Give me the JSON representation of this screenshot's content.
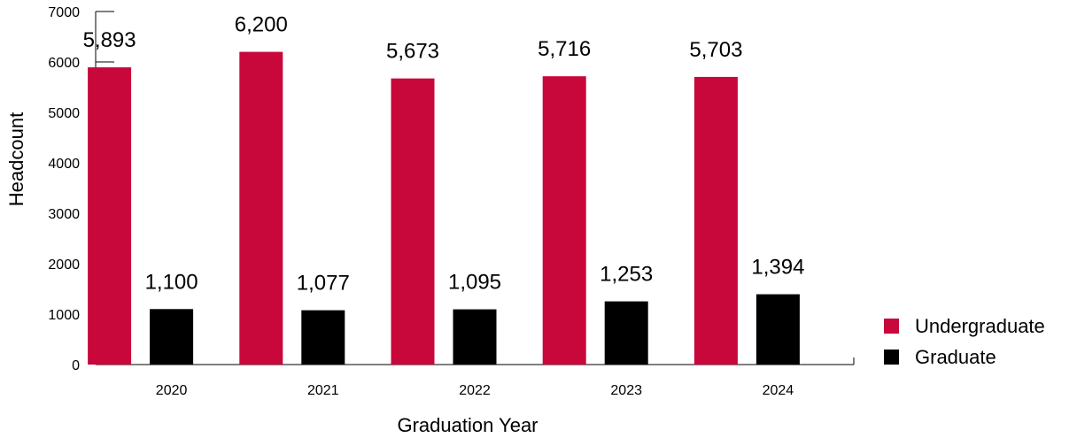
{
  "chart_data": {
    "type": "bar",
    "title": "",
    "xlabel": "Graduation Year",
    "ylabel": "Headcount",
    "ylim": [
      0,
      7000
    ],
    "yticks": [
      0,
      1000,
      2000,
      3000,
      4000,
      5000,
      6000,
      7000
    ],
    "categories": [
      "2020",
      "2021",
      "2022",
      "2023",
      "2024"
    ],
    "series": [
      {
        "name": "Undergraduate",
        "color": "#C8073A",
        "values": [
          5893,
          6200,
          5673,
          5716,
          5703
        ],
        "labels": [
          "5,893",
          "6,200",
          "5,673",
          "5,716",
          "5,703"
        ]
      },
      {
        "name": "Graduate",
        "color": "#000000",
        "values": [
          1100,
          1077,
          1095,
          1253,
          1394
        ],
        "labels": [
          "1,100",
          "1,077",
          "1,095",
          "1,253",
          "1,394"
        ]
      }
    ],
    "grid": false,
    "legend_position": "bottom-right"
  }
}
